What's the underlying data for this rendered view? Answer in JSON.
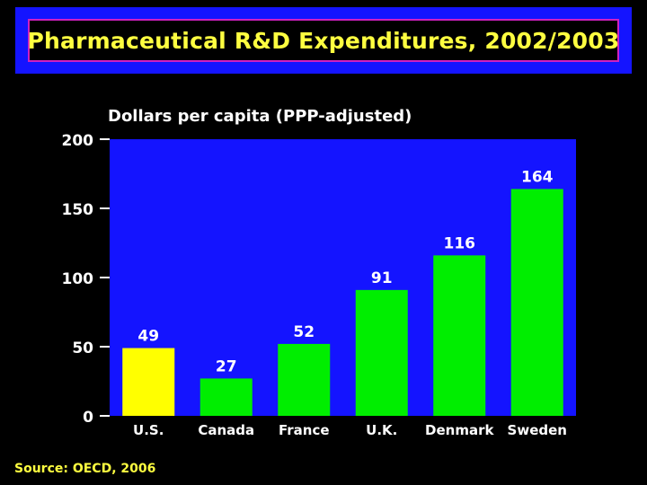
{
  "title": "Pharmaceutical R&D Expenditures, 2002/2003",
  "source": "Source: OECD, 2006",
  "colors": {
    "background": "#000000",
    "plot_area": "#1414ff",
    "highlight_bar": "#ffff00",
    "bar": "#00ee00",
    "title_text": "#ffff40",
    "title_border": "#d020c0",
    "axis_text": "#ffffff"
  },
  "chart_data": {
    "type": "bar",
    "title": "Pharmaceutical R&D Expenditures, 2002/2003",
    "ylabel": "Dollars per capita (PPP-adjusted)",
    "xlabel": "",
    "categories": [
      "U.S.",
      "Canada",
      "France",
      "U.K.",
      "Denmark",
      "Sweden"
    ],
    "values": [
      49,
      27,
      52,
      91,
      116,
      164
    ],
    "data_labels": [
      "49",
      "27",
      "52",
      "91",
      "116",
      "164"
    ],
    "highlight": [
      "U.S."
    ],
    "ylim": [
      0,
      200
    ],
    "yticks": [
      "0",
      "50",
      "100",
      "150",
      "200"
    ],
    "grid": false,
    "legend": "none"
  }
}
